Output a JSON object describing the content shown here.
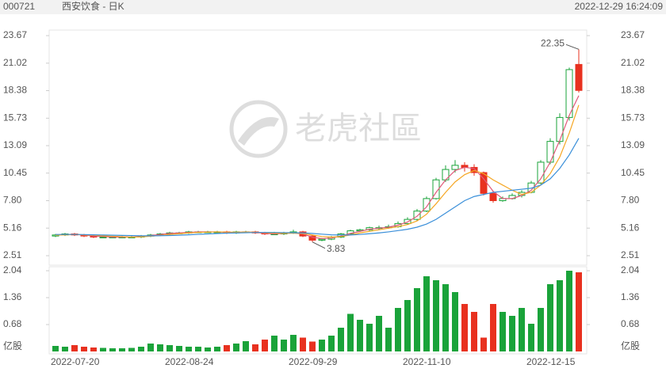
{
  "chart_data": {
    "type": "candlestick",
    "code": "000721",
    "title": "西安饮食 - 日K",
    "timestamp": "2022-12-29 16:24:09",
    "watermark": "老虎社區",
    "volume_unit": "亿股",
    "up_color": "#1aa33a",
    "down_color": "#e8311f",
    "categories": [
      "2022-07-20",
      null,
      null,
      null,
      null,
      null,
      null,
      null,
      null,
      null,
      null,
      null,
      "2022-08-24",
      null,
      null,
      null,
      null,
      null,
      null,
      null,
      null,
      null,
      null,
      null,
      null,
      "2022-09-29",
      null,
      null,
      null,
      null,
      null,
      null,
      null,
      null,
      null,
      null,
      null,
      "2022-11-10",
      null,
      null,
      null,
      null,
      null,
      null,
      null,
      null,
      null,
      null,
      null,
      null,
      "2022-12-15",
      null,
      null,
      null,
      null,
      null
    ],
    "candles": [
      [
        4.4,
        4.6,
        4.3,
        4.5
      ],
      [
        4.5,
        4.7,
        4.4,
        4.6
      ],
      [
        4.6,
        4.7,
        4.4,
        4.5
      ],
      [
        4.5,
        4.6,
        4.3,
        4.4
      ],
      [
        4.4,
        4.5,
        4.2,
        4.3
      ],
      [
        4.3,
        4.4,
        4.2,
        4.3
      ],
      [
        4.3,
        4.4,
        4.2,
        4.3
      ],
      [
        4.3,
        4.4,
        4.2,
        4.3
      ],
      [
        4.3,
        4.4,
        4.2,
        4.3
      ],
      [
        4.3,
        4.5,
        4.2,
        4.4
      ],
      [
        4.4,
        4.6,
        4.3,
        4.5
      ],
      [
        4.5,
        4.7,
        4.4,
        4.6
      ],
      [
        4.6,
        4.8,
        4.5,
        4.7
      ],
      [
        4.7,
        4.8,
        4.6,
        4.7
      ],
      [
        4.7,
        4.9,
        4.6,
        4.8
      ],
      [
        4.8,
        4.9,
        4.7,
        4.8
      ],
      [
        4.8,
        4.9,
        4.7,
        4.8
      ],
      [
        4.8,
        4.9,
        4.7,
        4.8
      ],
      [
        4.8,
        4.9,
        4.6,
        4.7
      ],
      [
        4.7,
        4.9,
        4.6,
        4.8
      ],
      [
        4.8,
        4.9,
        4.7,
        4.8
      ],
      [
        4.8,
        4.9,
        4.6,
        4.7
      ],
      [
        4.7,
        4.8,
        4.5,
        4.6
      ],
      [
        4.6,
        4.8,
        4.5,
        4.6
      ],
      [
        4.6,
        4.8,
        4.5,
        4.7
      ],
      [
        4.7,
        5.0,
        4.6,
        4.8
      ],
      [
        4.8,
        4.9,
        4.3,
        4.4
      ],
      [
        4.4,
        4.5,
        3.83,
        4.0
      ],
      [
        4.0,
        4.2,
        3.9,
        4.1
      ],
      [
        4.1,
        4.4,
        4.0,
        4.3
      ],
      [
        4.3,
        4.7,
        4.2,
        4.6
      ],
      [
        4.6,
        5.0,
        4.5,
        4.9
      ],
      [
        4.9,
        5.1,
        4.8,
        5.0
      ],
      [
        5.0,
        5.3,
        4.9,
        5.2
      ],
      [
        5.2,
        5.4,
        5.0,
        5.2
      ],
      [
        5.2,
        5.5,
        5.1,
        5.3
      ],
      [
        5.3,
        5.8,
        5.2,
        5.6
      ],
      [
        5.6,
        6.2,
        5.5,
        6.0
      ],
      [
        6.0,
        7.0,
        5.9,
        6.8
      ],
      [
        6.8,
        8.2,
        6.7,
        8.0
      ],
      [
        8.0,
        10.0,
        7.9,
        9.8
      ],
      [
        9.8,
        11.2,
        9.6,
        10.8
      ],
      [
        10.8,
        11.7,
        10.5,
        11.2
      ],
      [
        11.2,
        11.5,
        10.6,
        11.0
      ],
      [
        11.0,
        11.3,
        10.2,
        10.5
      ],
      [
        10.5,
        10.6,
        8.3,
        8.5
      ],
      [
        8.5,
        8.7,
        7.6,
        7.8
      ],
      [
        7.8,
        8.2,
        7.7,
        8.0
      ],
      [
        8.0,
        8.5,
        7.9,
        8.3
      ],
      [
        8.3,
        8.8,
        8.1,
        8.6
      ],
      [
        8.6,
        9.7,
        8.5,
        9.5
      ],
      [
        9.5,
        11.7,
        9.4,
        11.5
      ],
      [
        11.5,
        13.8,
        11.3,
        13.5
      ],
      [
        13.5,
        16.2,
        13.2,
        15.8
      ],
      [
        15.8,
        20.6,
        15.5,
        20.4
      ],
      [
        20.9,
        22.35,
        18.2,
        18.4
      ]
    ],
    "volumes": [
      0.14,
      0.12,
      0.16,
      0.12,
      0.1,
      0.09,
      0.08,
      0.08,
      0.09,
      0.12,
      0.2,
      0.18,
      0.16,
      0.14,
      0.12,
      0.12,
      0.1,
      0.12,
      0.16,
      0.2,
      0.26,
      0.18,
      0.3,
      0.4,
      0.3,
      0.42,
      0.35,
      0.25,
      0.3,
      0.4,
      0.6,
      0.95,
      0.8,
      0.7,
      0.9,
      0.6,
      1.1,
      1.3,
      1.6,
      1.9,
      1.8,
      1.7,
      1.5,
      1.2,
      1.0,
      0.35,
      1.2,
      1.0,
      0.9,
      1.1,
      0.7,
      1.1,
      1.7,
      1.8,
      2.04,
      2.0
    ],
    "ma_lines": [
      {
        "color": "#e05a7a",
        "values": [
          4.5,
          4.55,
          4.55,
          4.5,
          4.4,
          4.35,
          4.3,
          4.3,
          4.3,
          4.35,
          4.45,
          4.55,
          4.65,
          4.7,
          4.75,
          4.8,
          4.8,
          4.8,
          4.75,
          4.75,
          4.8,
          4.75,
          4.65,
          4.6,
          4.65,
          4.7,
          4.6,
          4.3,
          4.15,
          4.2,
          4.4,
          4.65,
          4.85,
          5.05,
          5.15,
          5.25,
          5.45,
          5.75,
          6.3,
          7.2,
          8.6,
          9.8,
          10.7,
          11.0,
          10.9,
          9.9,
          8.7,
          8.0,
          8.0,
          8.3,
          8.8,
          9.9,
          11.5,
          13.6,
          16.0,
          17.9
        ]
      },
      {
        "color": "#f5a623",
        "values": [
          4.5,
          4.5,
          4.55,
          4.52,
          4.48,
          4.42,
          4.38,
          4.34,
          4.3,
          4.32,
          4.38,
          4.45,
          4.55,
          4.62,
          4.7,
          4.75,
          4.78,
          4.8,
          4.78,
          4.77,
          4.78,
          4.77,
          4.72,
          4.68,
          4.66,
          4.68,
          4.65,
          4.5,
          4.35,
          4.3,
          4.35,
          4.5,
          4.7,
          4.85,
          5.0,
          5.15,
          5.3,
          5.5,
          5.85,
          6.5,
          7.5,
          8.6,
          9.6,
          10.3,
          10.7,
          10.4,
          9.8,
          9.3,
          8.8,
          8.4,
          8.6,
          9.3,
          10.4,
          12.0,
          14.3,
          17.0
        ]
      },
      {
        "color": "#3a8fd9",
        "values": [
          4.55,
          4.55,
          4.55,
          4.54,
          4.52,
          4.5,
          4.48,
          4.46,
          4.44,
          4.42,
          4.42,
          4.43,
          4.45,
          4.48,
          4.52,
          4.56,
          4.6,
          4.64,
          4.68,
          4.7,
          4.72,
          4.74,
          4.75,
          4.74,
          4.73,
          4.72,
          4.7,
          4.65,
          4.58,
          4.52,
          4.5,
          4.5,
          4.55,
          4.62,
          4.7,
          4.8,
          4.92,
          5.05,
          5.25,
          5.55,
          6.0,
          6.6,
          7.2,
          7.8,
          8.2,
          8.4,
          8.6,
          8.7,
          8.8,
          8.9,
          9.0,
          9.3,
          9.9,
          10.9,
          12.2,
          13.8
        ]
      }
    ],
    "ylim": [
      2.51,
      23.67
    ],
    "yticks": [
      2.51,
      5.16,
      {
        "value": 7.8,
        "label": "7.80"
      },
      10.45,
      13.09,
      15.73,
      18.38,
      21.02,
      23.67
    ],
    "vol_ylim": [
      0,
      2.04
    ],
    "vol_yticks": [
      0.68,
      1.36,
      2.04
    ]
  }
}
